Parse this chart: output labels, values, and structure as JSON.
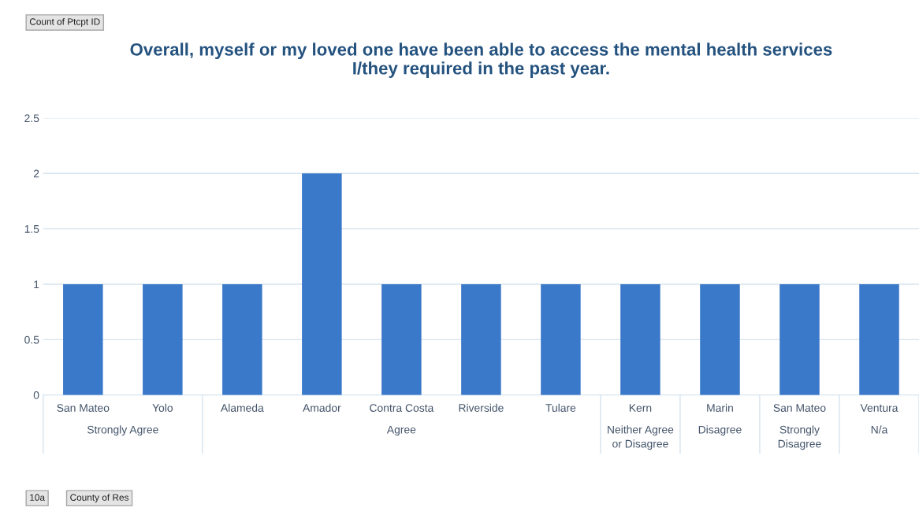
{
  "chart_data": {
    "type": "bar",
    "title": "Overall, myself or my loved one have been able to access the mental health services\nI/they required in the past year.",
    "categories": [
      "San Mateo",
      "Yolo",
      "Alameda",
      "Amador",
      "Contra Costa",
      "Riverside",
      "Tulare",
      "Kern",
      "Marin",
      "San Mateo",
      "Ventura"
    ],
    "values": [
      1,
      1,
      1,
      2,
      1,
      1,
      1,
      1,
      1,
      1,
      1
    ],
    "color": "#3a78c9",
    "ylim": [
      0,
      2.5
    ],
    "yticks": [
      0,
      0.5,
      1,
      1.5,
      2,
      2.5
    ],
    "grid": "y",
    "legend": false,
    "annotations": [
      "Count of Ptcpt ID",
      "10a",
      "County of Res",
      "Strongly Agree",
      "Agree",
      "Neither Agree or Disagree",
      "Disagree",
      "Strongly Disagree",
      "N/a"
    ]
  }
}
